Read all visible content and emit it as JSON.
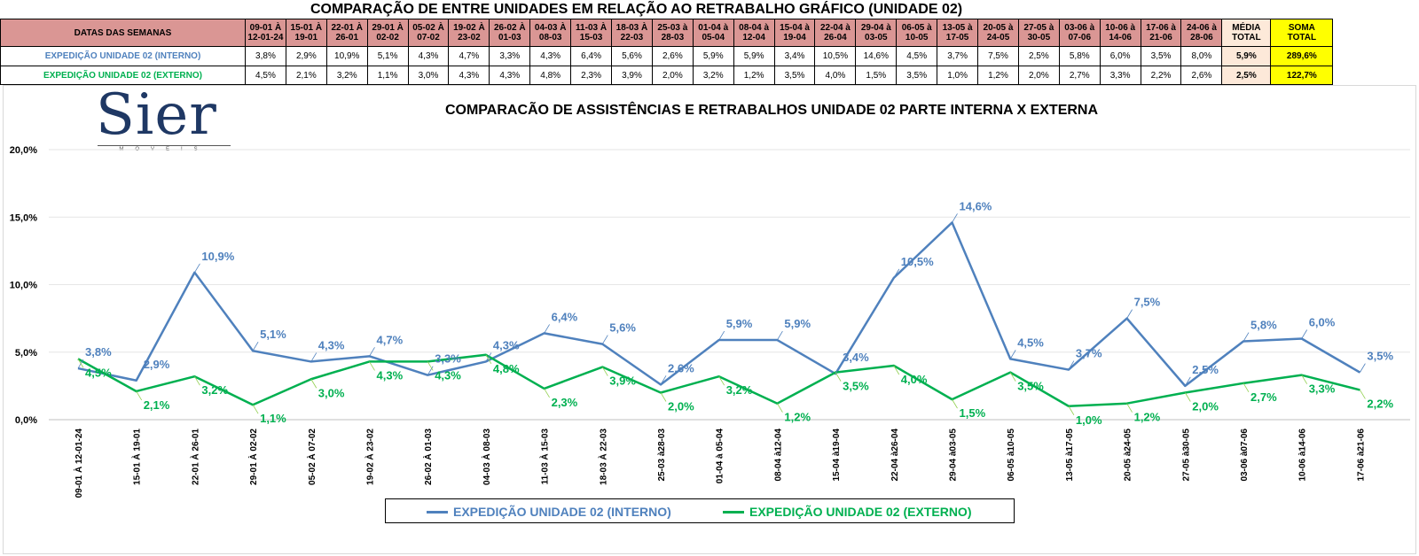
{
  "title": "COMPARAÇÃO DE ENTRE UNIDADES EM RELAÇÃO AO RETRABALHO GRÁFICO (UNIDADE 02)",
  "table": {
    "header_label": "DATAS DAS SEMANAS",
    "weeks": [
      {
        "l1": "09-01 À",
        "l2": "12-01-24"
      },
      {
        "l1": "15-01 À",
        "l2": "19-01"
      },
      {
        "l1": "22-01 À",
        "l2": "26-01"
      },
      {
        "l1": "29-01 À",
        "l2": "02-02"
      },
      {
        "l1": "05-02 À",
        "l2": "07-02"
      },
      {
        "l1": "19-02 À",
        "l2": "23-02"
      },
      {
        "l1": "26-02 À",
        "l2": "01-03"
      },
      {
        "l1": "04-03 À",
        "l2": "08-03"
      },
      {
        "l1": "11-03 À",
        "l2": "15-03"
      },
      {
        "l1": "18-03 À",
        "l2": "22-03"
      },
      {
        "l1": "25-03 à",
        "l2": "28-03"
      },
      {
        "l1": "01-04 à",
        "l2": "05-04"
      },
      {
        "l1": "08-04 à",
        "l2": "12-04"
      },
      {
        "l1": "15-04 à",
        "l2": "19-04"
      },
      {
        "l1": "22-04 à",
        "l2": "26-04"
      },
      {
        "l1": "29-04 à",
        "l2": "03-05"
      },
      {
        "l1": "06-05 à",
        "l2": "10-05"
      },
      {
        "l1": "13-05 à",
        "l2": "17-05"
      },
      {
        "l1": "20-05 à",
        "l2": "24-05"
      },
      {
        "l1": "27-05 à",
        "l2": "30-05"
      },
      {
        "l1": "03-06 à",
        "l2": "07-06"
      },
      {
        "l1": "10-06 à",
        "l2": "14-06"
      },
      {
        "l1": "17-06 à",
        "l2": "21-06"
      },
      {
        "l1": "24-06 à",
        "l2": "28-06"
      }
    ],
    "media_header": {
      "l1": "MÉDIA",
      "l2": "TOTAL"
    },
    "soma_header": {
      "l1": "SOMA",
      "l2": "TOTAL"
    },
    "rows": [
      {
        "label": "EXPEDIÇÃO UNIDADE 02 (INTERNO)",
        "values": [
          "3,8%",
          "2,9%",
          "10,9%",
          "5,1%",
          "4,3%",
          "4,7%",
          "3,3%",
          "4,3%",
          "6,4%",
          "5,6%",
          "2,6%",
          "5,9%",
          "5,9%",
          "3,4%",
          "10,5%",
          "14,6%",
          "4,5%",
          "3,7%",
          "7,5%",
          "2,5%",
          "5,8%",
          "6,0%",
          "3,5%",
          "8,0%"
        ],
        "media": "5,9%",
        "soma": "289,6%"
      },
      {
        "label": "EXPEDIÇÃO UNIDADE 02 (EXTERNO)",
        "values": [
          "4,5%",
          "2,1%",
          "3,2%",
          "1,1%",
          "3,0%",
          "4,3%",
          "4,3%",
          "4,8%",
          "2,3%",
          "3,9%",
          "2,0%",
          "3,2%",
          "1,2%",
          "3,5%",
          "4,0%",
          "1,5%",
          "3,5%",
          "1,0%",
          "1,2%",
          "2,0%",
          "2,7%",
          "3,3%",
          "2,2%",
          "2,6%"
        ],
        "media": "2,5%",
        "soma": "122,7%"
      }
    ]
  },
  "logo": {
    "word": "Sier",
    "sub": "MOVEIS"
  },
  "chart_data": {
    "type": "line",
    "title": "COMPARACÃO DE ASSISTÊNCIAS E RETRABALHOS UNIDADE 02 PARTE INTERNA X EXTERNA",
    "categories": [
      "09-01 À 12-01-24",
      "15-01 À 19-01",
      "22-01 À 26-01",
      "29-01 À 02-02",
      "05-02 À 07-02",
      "19-02 À 23-02",
      "26-02 À 01-03",
      "04-03 À 08-03",
      "11-03 À 15-03",
      "18-03 À 22-03",
      "25-03 à28-03",
      "01-04 à 05-04",
      "08-04 à12-04",
      "15-04 à19-04",
      "22-04 à26-04",
      "29-04 à03-05",
      "06-05 à10-05",
      "13-05 à17-05",
      "20-05 à24-05",
      "27-05 à30-05",
      "03-06 à07-06",
      "10-06 à14-06",
      "17-06 à21-06"
    ],
    "series": [
      {
        "name": "EXPEDIÇÃO UNIDADE 02 (INTERNO)",
        "color": "#4f81bd",
        "values": [
          3.8,
          2.9,
          10.9,
          5.1,
          4.3,
          4.7,
          3.3,
          4.3,
          6.4,
          5.6,
          2.6,
          5.9,
          5.9,
          3.4,
          10.5,
          14.6,
          4.5,
          3.7,
          7.5,
          2.5,
          5.8,
          6.0,
          3.5
        ],
        "labels": [
          "3,8%",
          "2,9%",
          "10,9%",
          "5,1%",
          "4,3%",
          "4,7%",
          "3,3%",
          "4,3%",
          "6,4%",
          "5,6%",
          "2,6%",
          "5,9%",
          "5,9%",
          "3,4%",
          "10,5%",
          "14,6%",
          "4,5%",
          "3,7%",
          "7,5%",
          "2,5%",
          "5,8%",
          "6,0%",
          "3,5%"
        ]
      },
      {
        "name": "EXPEDIÇÃO UNIDADE 02 (EXTERNO)",
        "color": "#00b050",
        "values": [
          4.5,
          2.1,
          3.2,
          1.1,
          3.0,
          4.3,
          4.3,
          4.8,
          2.3,
          3.9,
          2.0,
          3.2,
          1.2,
          3.5,
          4.0,
          1.5,
          3.5,
          1.0,
          1.2,
          2.0,
          2.7,
          3.3,
          2.2
        ],
        "labels": [
          "4,5%",
          "2,1%",
          "3,2%",
          "1,1%",
          "3,0%",
          "4,3%",
          "4,3%",
          "4,8%",
          "2,3%",
          "3,9%",
          "2,0%",
          "3,2%",
          "1,2%",
          "3,5%",
          "4,0%",
          "1,5%",
          "3,5%",
          "1,0%",
          "1,2%",
          "2,0%",
          "2,7%",
          "3,3%",
          "2,2%"
        ]
      }
    ],
    "ylim": [
      0,
      20
    ],
    "yticks": [
      0,
      5,
      10,
      15,
      20
    ],
    "ytick_labels": [
      "0,0%",
      "5,0%",
      "10,0%",
      "15,0%",
      "20,0%"
    ],
    "grid": true,
    "legend_position": "bottom"
  }
}
